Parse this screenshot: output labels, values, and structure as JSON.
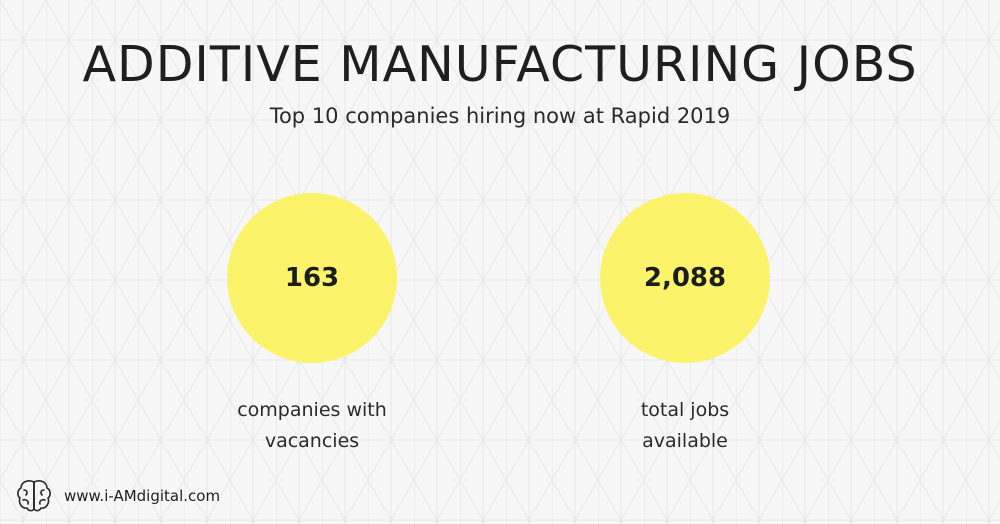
{
  "title": "ADDITIVE MANUFACTURING JOBS",
  "subtitle": "Top 10 companies hiring now at Rapid 2019",
  "stats": [
    {
      "value": "163",
      "caption_line1": "companies with",
      "caption_line2": "vacancies"
    },
    {
      "value": "2,088",
      "caption_line1": "total jobs",
      "caption_line2": "available"
    }
  ],
  "footer": {
    "logo_icon": "brain-icon",
    "url": "www.i-AMdigital.com"
  },
  "colors": {
    "background": "#f7f7f7",
    "circle": "#fbf46a",
    "text": "#222222"
  }
}
